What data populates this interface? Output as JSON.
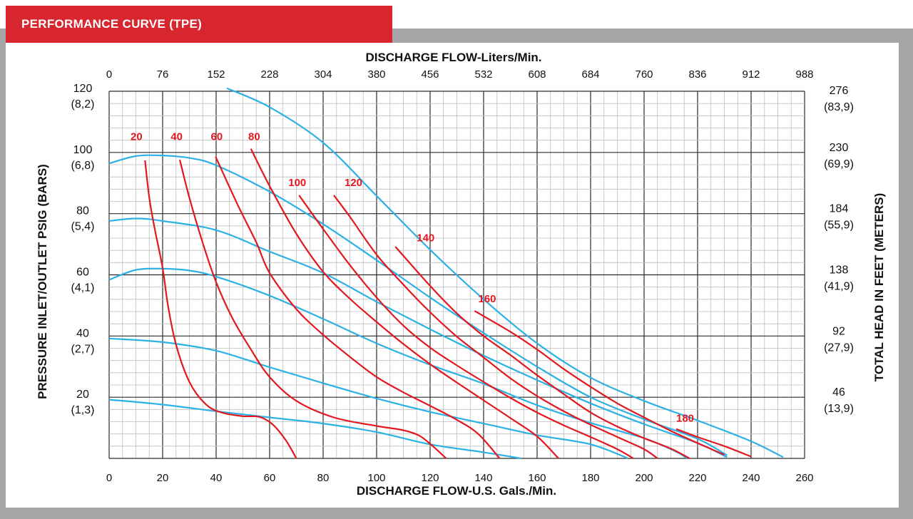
{
  "header": {
    "title": "PERFORMANCE CURVE  (TPE)"
  },
  "colors": {
    "header_bg": "#d7262d",
    "frame": "#a6a6a8",
    "air_curve": "#2cb1e5",
    "flow_curve": "#e3181f",
    "label_red": "#e3181f"
  },
  "chart_data": {
    "type": "line",
    "title": "",
    "top_axis_label": "DISCHARGE FLOW-Liters/Min.",
    "xlabel": "DISCHARGE FLOW-U.S. Gals./Min.",
    "ylabel": "PRESSURE INLET/OUTLET PSIG (BARS)",
    "right_label": "TOTAL HEAD IN FEET (METERS)",
    "xlim": [
      0,
      260
    ],
    "ylim": [
      0,
      120
    ],
    "grid": true,
    "x_ticks": [
      "0",
      "20",
      "40",
      "60",
      "80",
      "100",
      "120",
      "140",
      "160",
      "180",
      "200",
      "220",
      "240",
      "260"
    ],
    "top_ticks": [
      "0",
      "76",
      "152",
      "228",
      "304",
      "380",
      "456",
      "532",
      "608",
      "684",
      "760",
      "836",
      "912",
      "988"
    ],
    "left_ticks": [
      {
        "value": 120,
        "psi": "120",
        "bar": "(8,2)"
      },
      {
        "value": 100,
        "psi": "100",
        "bar": "(6,8)"
      },
      {
        "value": 80,
        "psi": "80",
        "bar": "(5,4)"
      },
      {
        "value": 60,
        "psi": "60",
        "bar": "(4,1)"
      },
      {
        "value": 40,
        "psi": "40",
        "bar": "(2,7)"
      },
      {
        "value": 20,
        "psi": "20",
        "bar": "(1,3)"
      }
    ],
    "right_ticks": [
      {
        "value": 120,
        "ft": "276",
        "m": "(83,9)"
      },
      {
        "value": 100,
        "ft": "230",
        "m": "(69,9)"
      },
      {
        "value": 80,
        "ft": "184",
        "m": "(55,9)"
      },
      {
        "value": 60,
        "ft": "138",
        "m": "(41,9)"
      },
      {
        "value": 40,
        "ft": "92",
        "m": "(27,9)"
      },
      {
        "value": 20,
        "ft": "46",
        "m": "(13,9)"
      }
    ],
    "air_pressure_curves": [
      {
        "points": [
          [
            0,
            19.2
          ],
          [
            20,
            17.6
          ],
          [
            40,
            15.4
          ],
          [
            60,
            13.4
          ],
          [
            80,
            11.4
          ],
          [
            100,
            8.6
          ],
          [
            120,
            4.6
          ],
          [
            140,
            2.0
          ],
          [
            154,
            0
          ]
        ]
      },
      {
        "points": [
          [
            0,
            39.2
          ],
          [
            20,
            38.0
          ],
          [
            40,
            35.2
          ],
          [
            60,
            29.8
          ],
          [
            80,
            24.6
          ],
          [
            100,
            19.6
          ],
          [
            120,
            15.2
          ],
          [
            140,
            11.4
          ],
          [
            160,
            7.6
          ],
          [
            180,
            4.6
          ],
          [
            194,
            0
          ]
        ]
      },
      {
        "points": [
          [
            0,
            58.4
          ],
          [
            10,
            61.6
          ],
          [
            20,
            62.0
          ],
          [
            30,
            61.4
          ],
          [
            40,
            59.4
          ],
          [
            60,
            53.2
          ],
          [
            80,
            45.6
          ],
          [
            100,
            37.6
          ],
          [
            120,
            30.6
          ],
          [
            140,
            24.4
          ],
          [
            160,
            17.4
          ],
          [
            180,
            11.6
          ],
          [
            200,
            6.6
          ],
          [
            212,
            2.2
          ],
          [
            216,
            0
          ]
        ]
      },
      {
        "points": [
          [
            0,
            77.6
          ],
          [
            10,
            78.4
          ],
          [
            20,
            77.6
          ],
          [
            40,
            74.6
          ],
          [
            60,
            67.6
          ],
          [
            80,
            60.6
          ],
          [
            100,
            51.2
          ],
          [
            120,
            42.2
          ],
          [
            140,
            33.6
          ],
          [
            160,
            25.6
          ],
          [
            180,
            18.0
          ],
          [
            200,
            11.2
          ],
          [
            220,
            5.0
          ],
          [
            231,
            0.4
          ]
        ]
      },
      {
        "points": [
          [
            0,
            96.4
          ],
          [
            10,
            98.8
          ],
          [
            20,
            99.0
          ],
          [
            30,
            98.2
          ],
          [
            40,
            95.8
          ],
          [
            60,
            87.2
          ],
          [
            80,
            76.6
          ],
          [
            100,
            64.8
          ],
          [
            120,
            52.6
          ],
          [
            140,
            41.0
          ],
          [
            160,
            30.0
          ],
          [
            180,
            20.0
          ],
          [
            200,
            12.8
          ],
          [
            220,
            6.4
          ],
          [
            231,
            1.0
          ]
        ]
      },
      {
        "points": [
          [
            44,
            121
          ],
          [
            60,
            114.8
          ],
          [
            80,
            103.2
          ],
          [
            100,
            85.8
          ],
          [
            120,
            68.2
          ],
          [
            140,
            52.0
          ],
          [
            160,
            37.6
          ],
          [
            180,
            26.4
          ],
          [
            200,
            18.8
          ],
          [
            220,
            12.4
          ],
          [
            240,
            5.6
          ],
          [
            252,
            0.4
          ]
        ]
      }
    ],
    "flow_curves": [
      {
        "label": "20",
        "label_at": [
          8,
          104
        ],
        "points": [
          [
            13.4,
            97.4
          ],
          [
            15,
            85.2
          ],
          [
            17,
            75.2
          ],
          [
            20,
            62.2
          ],
          [
            22,
            50.0
          ],
          [
            25,
            37.2
          ],
          [
            30,
            25.0
          ],
          [
            36,
            17.8
          ],
          [
            42,
            15.0
          ],
          [
            50,
            13.8
          ],
          [
            56,
            13.6
          ],
          [
            61,
            11.2
          ],
          [
            66,
            6.0
          ],
          [
            70,
            0
          ]
        ]
      },
      {
        "label": "40",
        "label_at": [
          23,
          104
        ],
        "points": [
          [
            26.4,
            97.6
          ],
          [
            30,
            85.2
          ],
          [
            35,
            70.4
          ],
          [
            40,
            57.6
          ],
          [
            46,
            46.0
          ],
          [
            53,
            35.6
          ],
          [
            60,
            26.6
          ],
          [
            70,
            18.8
          ],
          [
            84,
            13.4
          ],
          [
            100,
            10.6
          ],
          [
            110,
            9.2
          ],
          [
            116,
            7.4
          ],
          [
            121,
            4.0
          ],
          [
            126,
            0
          ]
        ]
      },
      {
        "label": "60",
        "label_at": [
          38,
          104
        ],
        "points": [
          [
            39.8,
            98.6
          ],
          [
            48,
            83.0
          ],
          [
            55,
            70.6
          ],
          [
            60,
            60.6
          ],
          [
            70,
            48.8
          ],
          [
            80,
            40.4
          ],
          [
            90,
            33.2
          ],
          [
            100,
            26.6
          ],
          [
            110,
            21.6
          ],
          [
            120,
            17.2
          ],
          [
            130,
            12.6
          ],
          [
            138,
            8.0
          ],
          [
            146,
            0
          ]
        ]
      },
      {
        "label": "80",
        "label_at": [
          52,
          104
        ],
        "points": [
          [
            53.0,
            101.2
          ],
          [
            60,
            89.0
          ],
          [
            70,
            73.4
          ],
          [
            80,
            61.0
          ],
          [
            90,
            52.2
          ],
          [
            100,
            44.6
          ],
          [
            110,
            37.4
          ],
          [
            120,
            30.8
          ],
          [
            130,
            24.8
          ],
          [
            140,
            19.0
          ],
          [
            150,
            13.2
          ],
          [
            160,
            7.2
          ],
          [
            168,
            0
          ]
        ]
      },
      {
        "label": "100",
        "label_at": [
          67,
          89
        ],
        "points": [
          [
            71.0,
            86.0
          ],
          [
            80,
            75.0
          ],
          [
            90,
            63.2
          ],
          [
            100,
            52.6
          ],
          [
            110,
            43.4
          ],
          [
            120,
            36.2
          ],
          [
            130,
            30.4
          ],
          [
            140,
            25.0
          ],
          [
            150,
            19.8
          ],
          [
            160,
            15.0
          ],
          [
            170,
            10.8
          ],
          [
            180,
            7.0
          ],
          [
            190,
            3.0
          ],
          [
            196,
            0
          ]
        ]
      },
      {
        "label": "120",
        "label_at": [
          88,
          89
        ],
        "points": [
          [
            84.0,
            86.0
          ],
          [
            90,
            79.0
          ],
          [
            100,
            66.6
          ],
          [
            110,
            56.8
          ],
          [
            120,
            47.8
          ],
          [
            130,
            39.8
          ],
          [
            140,
            33.0
          ],
          [
            150,
            26.2
          ],
          [
            160,
            20.4
          ],
          [
            170,
            15.4
          ],
          [
            180,
            11.0
          ],
          [
            190,
            7.0
          ],
          [
            200,
            3.0
          ],
          [
            205,
            0
          ]
        ]
      },
      {
        "label": "140",
        "label_at": [
          115,
          71
        ],
        "points": [
          [
            107.0,
            69.2
          ],
          [
            120,
            56.4
          ],
          [
            130,
            47.4
          ],
          [
            140,
            40.0
          ],
          [
            150,
            33.8
          ],
          [
            160,
            27.2
          ],
          [
            170,
            21.0
          ],
          [
            180,
            15.0
          ],
          [
            190,
            10.4
          ],
          [
            200,
            6.6
          ],
          [
            210,
            3.2
          ],
          [
            217,
            0
          ]
        ]
      },
      {
        "label": "160",
        "label_at": [
          138,
          51
        ],
        "points": [
          [
            136.6,
            48.2
          ],
          [
            150,
            41.4
          ],
          [
            160,
            35.6
          ],
          [
            170,
            29.2
          ],
          [
            180,
            23.4
          ],
          [
            190,
            18.0
          ],
          [
            200,
            13.4
          ],
          [
            210,
            9.0
          ],
          [
            220,
            5.0
          ],
          [
            230,
            1.2
          ]
        ]
      },
      {
        "label": "180",
        "label_at": [
          212,
          12
        ],
        "points": [
          [
            212.0,
            9.6
          ],
          [
            220,
            7.0
          ],
          [
            230,
            4.0
          ],
          [
            240,
            0.6
          ]
        ]
      }
    ]
  }
}
